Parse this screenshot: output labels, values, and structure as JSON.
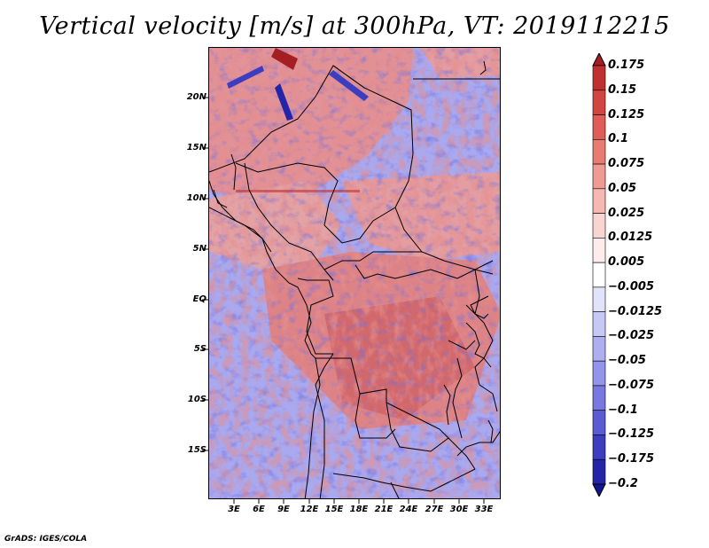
{
  "title": "Vertical velocity [m/s] at 300hPa, VT: 2019112215",
  "footer": "GrADS: IGES/COLA",
  "lat_labels": [
    "20N",
    "15N",
    "10N",
    "5N",
    "EQ",
    "5S",
    "10S",
    "15S"
  ],
  "lon_labels": [
    "3E",
    "6E",
    "9E",
    "12E",
    "15E",
    "18E",
    "21E",
    "24E",
    "27E",
    "30E",
    "33E"
  ],
  "colorbar": {
    "labels": [
      "0.175",
      "0.15",
      "0.125",
      "0.1",
      "0.075",
      "0.05",
      "0.025",
      "0.0125",
      "0.005",
      "−0.005",
      "−0.0125",
      "−0.025",
      "−0.05",
      "−0.075",
      "−0.1",
      "−0.125",
      "−0.175",
      "−0.2"
    ],
    "colors": [
      "#a51f22",
      "#c0302f",
      "#d24641",
      "#df5f58",
      "#e87c73",
      "#ef9a92",
      "#f5b8b2",
      "#f9d5d1",
      "#fdeceb",
      "#ffffff",
      "#e2e2fb",
      "#c8c8f6",
      "#aeaef1",
      "#9494ea",
      "#7878e0",
      "#5b5bd2",
      "#3d3dc0",
      "#2424a8",
      "#14148c"
    ]
  },
  "colors": {
    "positive": "#d9534f",
    "negative": "#6a6ae0",
    "neutral": "#ffffff"
  }
}
